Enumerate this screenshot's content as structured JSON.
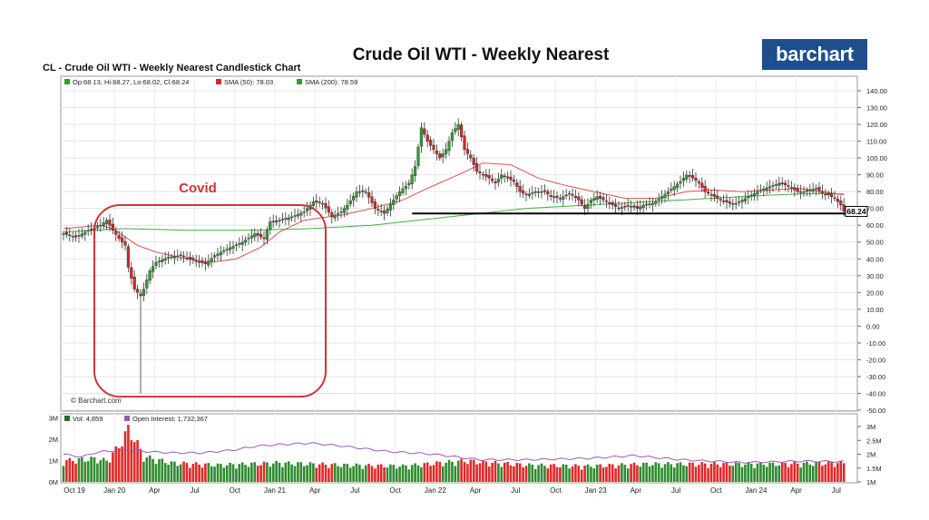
{
  "header": {
    "title": "Crude Oil WTI - Weekly Nearest",
    "logo_text": "barchart",
    "chart_subtitle": "CL - Crude Oil WTI - Weekly Nearest Candlestick Chart"
  },
  "legend": {
    "ohlc": "Op:68.13, Hi:68.27, Lo:68.02, Cl:68.24",
    "sma50": "SMA (50): 78.03",
    "sma200": "SMA (200): 78.59",
    "vol": "Vol: 4,859",
    "oi": "Open Interest: 1,732,367"
  },
  "annotations": {
    "covid_label": "Covid",
    "copyright": "© Barchart.com"
  },
  "colors": {
    "up": "#2ca02c",
    "down": "#d62728",
    "sma50": "#d9534f",
    "sma200": "#3cb043",
    "open_interest": "#9b59b6",
    "covid": "#d0343a",
    "logo_bg": "#1c4f8c"
  },
  "chart_data": {
    "type": "candlestick",
    "title": "Crude Oil WTI - Weekly Nearest",
    "price_axis": {
      "ylim": [
        -50,
        140
      ],
      "ticks": [
        "140.00",
        "130.00",
        "120.00",
        "110.00",
        "100.00",
        "90.00",
        "80.00",
        "70.00",
        "60.00",
        "50.00",
        "40.00",
        "30.00",
        "20.00",
        "10.00",
        "0.00",
        "-10.00",
        "-20.00",
        "-30.00",
        "-40.00",
        "-50.00"
      ],
      "tick_values": [
        140,
        130,
        120,
        110,
        100,
        90,
        80,
        70,
        60,
        50,
        40,
        30,
        20,
        10,
        0,
        -10,
        -20,
        -30,
        -40,
        -50
      ],
      "last_price_label": "68.24",
      "last_price": 68.24,
      "support_level": 67
    },
    "x_axis": {
      "labels": [
        "Oct 19",
        "Jan 20",
        "Apr",
        "Jul",
        "Oct",
        "Jan 21",
        "Apr",
        "Jul",
        "Oct",
        "Jan 22",
        "Apr",
        "Jul",
        "Oct",
        "Jan 23",
        "Apr",
        "Jul",
        "Oct",
        "Jan 24",
        "Apr",
        "Jul"
      ],
      "week_index": [
        0,
        13,
        26,
        39,
        52,
        65,
        78,
        91,
        104,
        117,
        130,
        143,
        156,
        169,
        182,
        195,
        208,
        221,
        234,
        247
      ]
    },
    "anchors": [
      [
        0,
        55
      ],
      [
        4,
        53
      ],
      [
        8,
        57
      ],
      [
        12,
        60
      ],
      [
        14,
        63
      ],
      [
        16,
        57
      ],
      [
        18,
        52
      ],
      [
        20,
        48
      ],
      [
        21,
        35
      ],
      [
        23,
        22
      ],
      [
        25,
        18
      ],
      [
        26,
        22
      ],
      [
        28,
        33
      ],
      [
        30,
        38
      ],
      [
        34,
        41
      ],
      [
        38,
        42
      ],
      [
        41,
        40
      ],
      [
        46,
        37
      ],
      [
        49,
        42
      ],
      [
        52,
        45
      ],
      [
        58,
        50
      ],
      [
        62,
        55
      ],
      [
        65,
        52
      ],
      [
        67,
        62
      ],
      [
        70,
        63
      ],
      [
        74,
        65
      ],
      [
        78,
        68
      ],
      [
        81,
        74
      ],
      [
        84,
        73
      ],
      [
        87,
        65
      ],
      [
        90,
        68
      ],
      [
        92,
        72
      ],
      [
        95,
        80
      ],
      [
        98,
        80
      ],
      [
        101,
        70
      ],
      [
        104,
        67
      ],
      [
        107,
        75
      ],
      [
        109,
        80
      ],
      [
        112,
        85
      ],
      [
        114,
        95
      ],
      [
        116,
        118
      ],
      [
        118,
        110
      ],
      [
        120,
        105
      ],
      [
        122,
        100
      ],
      [
        124,
        105
      ],
      [
        126,
        115
      ],
      [
        128,
        120
      ],
      [
        130,
        105
      ],
      [
        132,
        100
      ],
      [
        134,
        92
      ],
      [
        136,
        90
      ],
      [
        138,
        88
      ],
      [
        140,
        85
      ],
      [
        142,
        90
      ],
      [
        144,
        88
      ],
      [
        146,
        86
      ],
      [
        148,
        80
      ],
      [
        150,
        78
      ],
      [
        153,
        80
      ],
      [
        156,
        80
      ],
      [
        158,
        77
      ],
      [
        161,
        76
      ],
      [
        164,
        79
      ],
      [
        167,
        75
      ],
      [
        169,
        70
      ],
      [
        171,
        75
      ],
      [
        173,
        77
      ],
      [
        176,
        74
      ],
      [
        178,
        72
      ],
      [
        180,
        70
      ],
      [
        183,
        72
      ],
      [
        186,
        70
      ],
      [
        188,
        72
      ],
      [
        191,
        73
      ],
      [
        194,
        77
      ],
      [
        196,
        80
      ],
      [
        198,
        83
      ],
      [
        200,
        86
      ],
      [
        202,
        90
      ],
      [
        204,
        88
      ],
      [
        206,
        85
      ],
      [
        208,
        80
      ],
      [
        210,
        78
      ],
      [
        213,
        75
      ],
      [
        216,
        73
      ],
      [
        218,
        73
      ],
      [
        220,
        75
      ],
      [
        223,
        78
      ],
      [
        226,
        81
      ],
      [
        229,
        83
      ],
      [
        232,
        85
      ],
      [
        234,
        84
      ],
      [
        236,
        82
      ],
      [
        238,
        80
      ],
      [
        240,
        80
      ],
      [
        242,
        81
      ],
      [
        244,
        82
      ],
      [
        246,
        79
      ],
      [
        248,
        78
      ],
      [
        250,
        76
      ],
      [
        252,
        72
      ],
      [
        253,
        68.24
      ]
    ],
    "sma50_anchors": [
      [
        0,
        58
      ],
      [
        12,
        60
      ],
      [
        16,
        58
      ],
      [
        24,
        48
      ],
      [
        30,
        44
      ],
      [
        40,
        40
      ],
      [
        48,
        38
      ],
      [
        56,
        40
      ],
      [
        64,
        47
      ],
      [
        70,
        56
      ],
      [
        78,
        63
      ],
      [
        90,
        66
      ],
      [
        100,
        70
      ],
      [
        110,
        75
      ],
      [
        118,
        82
      ],
      [
        128,
        90
      ],
      [
        136,
        97
      ],
      [
        145,
        96
      ],
      [
        154,
        88
      ],
      [
        162,
        84
      ],
      [
        172,
        80
      ],
      [
        182,
        76
      ],
      [
        192,
        76
      ],
      [
        202,
        80
      ],
      [
        210,
        81
      ],
      [
        220,
        80
      ],
      [
        230,
        81
      ],
      [
        238,
        82
      ],
      [
        246,
        80
      ],
      [
        253,
        78
      ]
    ],
    "sma200_anchors": [
      [
        0,
        56
      ],
      [
        20,
        58
      ],
      [
        40,
        57
      ],
      [
        60,
        57
      ],
      [
        80,
        58
      ],
      [
        100,
        60
      ],
      [
        115,
        63
      ],
      [
        130,
        66
      ],
      [
        150,
        70
      ],
      [
        170,
        72
      ],
      [
        190,
        74
      ],
      [
        210,
        76
      ],
      [
        230,
        78
      ],
      [
        245,
        79
      ],
      [
        253,
        78.6
      ]
    ],
    "volume_axis": {
      "left_ticks": [
        "3M",
        "2M",
        "1M",
        "0M"
      ],
      "left_values": [
        3,
        2,
        1,
        0
      ],
      "right_ticks": [
        "3M",
        "2.5M",
        "2M",
        "1.5M",
        "1M"
      ],
      "right_values": [
        3,
        2.5,
        2,
        1.5,
        1
      ]
    },
    "volume_anchors": [
      [
        0,
        1.0
      ],
      [
        10,
        1.1
      ],
      [
        14,
        1.0
      ],
      [
        18,
        1.7
      ],
      [
        21,
        2.5
      ],
      [
        24,
        1.8
      ],
      [
        26,
        1.2
      ],
      [
        35,
        0.9
      ],
      [
        50,
        0.8
      ],
      [
        70,
        0.9
      ],
      [
        90,
        0.8
      ],
      [
        110,
        0.75
      ],
      [
        130,
        1.0
      ],
      [
        150,
        0.8
      ],
      [
        170,
        0.75
      ],
      [
        190,
        0.85
      ],
      [
        210,
        0.85
      ],
      [
        230,
        0.85
      ],
      [
        253,
        0.9
      ]
    ],
    "oi_anchors": [
      [
        0,
        2.0
      ],
      [
        6,
        1.9
      ],
      [
        10,
        2.05
      ],
      [
        13,
        2.1
      ],
      [
        20,
        2.15
      ],
      [
        26,
        2.1
      ],
      [
        35,
        2.05
      ],
      [
        45,
        2.05
      ],
      [
        55,
        2.15
      ],
      [
        63,
        2.3
      ],
      [
        70,
        2.35
      ],
      [
        80,
        2.4
      ],
      [
        90,
        2.3
      ],
      [
        105,
        2.1
      ],
      [
        120,
        2.0
      ],
      [
        135,
        1.8
      ],
      [
        150,
        1.8
      ],
      [
        170,
        1.85
      ],
      [
        185,
        1.95
      ],
      [
        200,
        1.8
      ],
      [
        220,
        1.7
      ],
      [
        240,
        1.75
      ],
      [
        253,
        1.73
      ]
    ],
    "covid_box_weeks": [
      10,
      85
    ],
    "covid_box_values": [
      -42,
      72
    ]
  }
}
